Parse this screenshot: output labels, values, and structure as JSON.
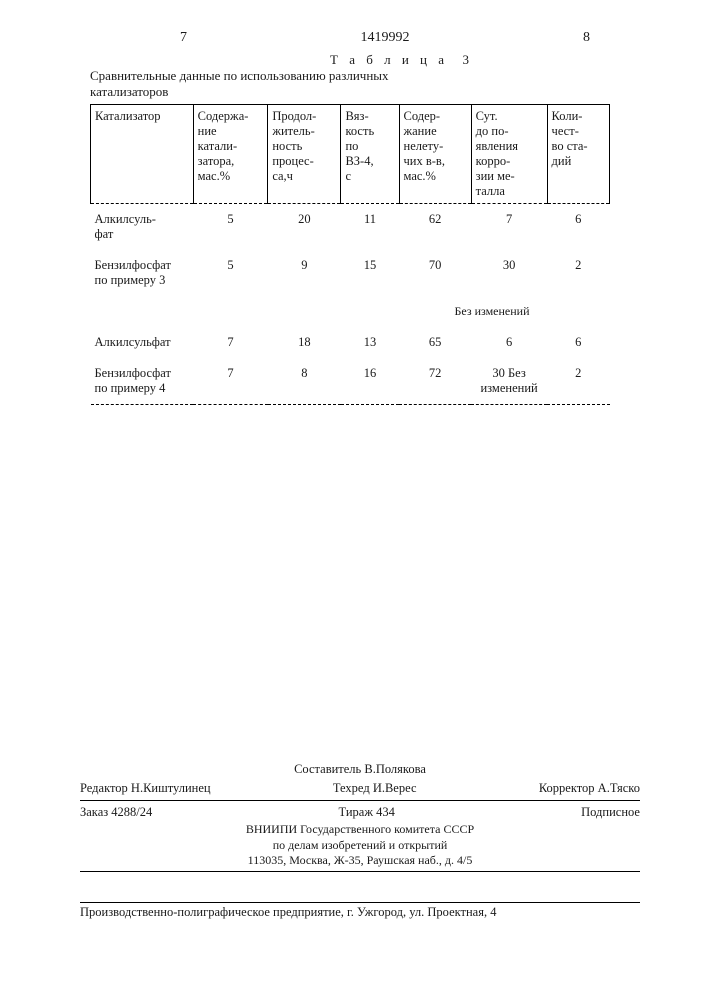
{
  "header": {
    "col_left": "7",
    "doc_number": "1419992",
    "col_right": "8"
  },
  "table": {
    "caption_label": "Т а б л и ц а",
    "caption_num": "3",
    "subtitle_line1": "Сравнительные данные по использованию различных",
    "subtitle_line2": "катализаторов",
    "columns": [
      "Катализатор",
      "Содержа-\nние\nкатали-\nзатора,\nмас.%",
      "Продол-\nжитель-\nность\nпроцес-\nса,ч",
      "Вяз-\nкость\nпо\nВЗ-4,\nс",
      "Содер-\nжание\nнелету-\nчих в-в,\nмас.%",
      "Сут.\nдо по-\nявления\nкорро-\nзии ме-\nталла",
      "Коли-\nчест-\nво ста-\nдий"
    ],
    "rows": [
      {
        "label": "Алкилсуль-\nфат",
        "c": [
          "5",
          "20",
          "11",
          "62",
          "7",
          "6"
        ]
      },
      {
        "label": "Бензилфосфат\nпо примеру 3",
        "c": [
          "5",
          "9",
          "15",
          "70",
          "30",
          "2"
        ],
        "note": "Без изменений"
      },
      {
        "label": "Алкилсульфат",
        "c": [
          "7",
          "18",
          "13",
          "65",
          "6",
          "6"
        ]
      },
      {
        "label": "Бензилфосфат\nпо примеру 4",
        "c": [
          "7",
          "8",
          "16",
          "72",
          "30 Без\nизменений",
          "2"
        ]
      }
    ]
  },
  "footer": {
    "editor_label": "Редактор",
    "editor_name": "Н.Киштулинец",
    "composer_label": "Составитель",
    "composer_name": "В.Полякова",
    "techred_label": "Техред",
    "techred_name": "И.Верес",
    "corrector_label": "Корректор",
    "corrector_name": "А.Тяско",
    "order": "Заказ 4288/24",
    "tirage": "Тираж 434",
    "podpis": "Подписное",
    "org_line1": "ВНИИПИ Государственного комитета СССР",
    "org_line2": "по делам изобретений и открытий",
    "org_line3": "113035, Москва, Ж-35, Раушская наб., д. 4/5",
    "bottom": "Производственно-полиграфическое предприятие, г. Ужгород, ул. Проектная, 4"
  }
}
